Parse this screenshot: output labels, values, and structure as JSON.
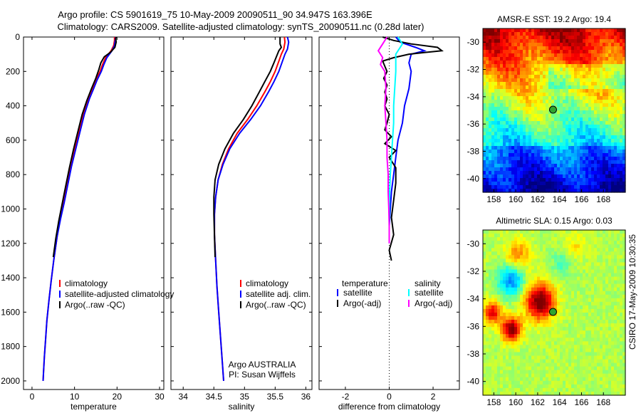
{
  "header": {
    "title_line1": "Argo profile: CS 5901619_75 10-May-2009 20090511_90 34.947S 163.396E",
    "title_line2": "Climatology: CARS2009. Satellite-adjusted climatology: synTS_20090511.nc (0.28d later)"
  },
  "side_label": "CSIRO 17-May-2009 10:30:35",
  "chart_data": [
    {
      "id": "temperature-panel",
      "type": "line",
      "xlabel": "temperature",
      "ylabel": "",
      "xlim": [
        -2,
        31
      ],
      "ylim": [
        2050,
        0
      ],
      "xticks": [
        0,
        10,
        20,
        30
      ],
      "yticks": [
        0,
        200,
        400,
        600,
        800,
        1000,
        1200,
        1400,
        1600,
        1800,
        2000
      ],
      "legend": {
        "placement": "bottom-right",
        "entries": [
          "climatology",
          "satellite-adjusted climatology",
          "Argo(..raw -QC)"
        ]
      },
      "series": [
        {
          "name": "climatology",
          "color": "#ff0000",
          "points": [
            [
              19.4,
              0
            ],
            [
              19.4,
              20
            ],
            [
              19.2,
              50
            ],
            [
              18.6,
              80
            ],
            [
              17.3,
              120
            ],
            [
              16.6,
              160
            ],
            [
              16,
              200
            ],
            [
              15,
              250
            ],
            [
              14.2,
              300
            ],
            [
              13.2,
              360
            ],
            [
              12,
              450
            ],
            [
              11,
              550
            ],
            [
              10,
              650
            ],
            [
              9,
              750
            ],
            [
              8.2,
              860
            ],
            [
              7.5,
              960
            ],
            [
              6.6,
              1060
            ],
            [
              5.9,
              1160
            ],
            [
              5.1,
              1300
            ],
            [
              4.5,
              1420
            ],
            [
              4,
              1530
            ],
            [
              3.5,
              1650
            ],
            [
              3.2,
              1760
            ],
            [
              2.9,
              1860
            ],
            [
              2.7,
              1950
            ],
            [
              2.6,
              2000
            ]
          ]
        },
        {
          "name": "satellite-adjusted climatology",
          "color": "#0000ff",
          "points": [
            [
              19.7,
              0
            ],
            [
              19.6,
              20
            ],
            [
              19.4,
              50
            ],
            [
              18.8,
              80
            ],
            [
              17.6,
              120
            ],
            [
              16.9,
              160
            ],
            [
              16.3,
              200
            ],
            [
              15.3,
              250
            ],
            [
              14.5,
              300
            ],
            [
              13.5,
              360
            ],
            [
              12.3,
              450
            ],
            [
              11.3,
              550
            ],
            [
              10.3,
              650
            ],
            [
              9.3,
              750
            ],
            [
              8.4,
              860
            ],
            [
              7.6,
              960
            ],
            [
              6.7,
              1060
            ],
            [
              5.9,
              1160
            ],
            [
              5.1,
              1300
            ],
            [
              4.5,
              1420
            ],
            [
              4,
              1530
            ],
            [
              3.5,
              1650
            ],
            [
              3.2,
              1760
            ],
            [
              2.9,
              1860
            ],
            [
              2.7,
              1950
            ],
            [
              2.6,
              2000
            ]
          ]
        },
        {
          "name": "Argo(..raw -QC)",
          "color": "#000000",
          "points": [
            [
              19.8,
              0
            ],
            [
              19.7,
              10
            ],
            [
              19.8,
              30
            ],
            [
              19.5,
              60
            ],
            [
              18.4,
              90
            ],
            [
              17,
              115
            ],
            [
              16.2,
              150
            ],
            [
              15.7,
              190
            ],
            [
              15,
              240
            ],
            [
              14,
              300
            ],
            [
              12.9,
              370
            ],
            [
              11.8,
              450
            ],
            [
              10.8,
              550
            ],
            [
              9.8,
              650
            ],
            [
              8.8,
              760
            ],
            [
              7.9,
              870
            ],
            [
              7.1,
              970
            ],
            [
              6.3,
              1070
            ],
            [
              5.6,
              1170
            ],
            [
              5,
              1280
            ]
          ]
        }
      ]
    },
    {
      "id": "salinity-panel",
      "type": "line",
      "xlabel": "salinity",
      "xlim": [
        33.8,
        36.1
      ],
      "ylim": [
        2050,
        0
      ],
      "xticks": [
        34,
        34.5,
        35,
        35.5,
        36
      ],
      "legend": {
        "placement": "bottom-right",
        "entries": [
          "climatology",
          "satellite adj. clim.",
          "Argo(..raw -QC)"
        ]
      },
      "annotation_lines": [
        "Argo AUSTRALIA",
        "PI: Susan Wijffels"
      ],
      "series": [
        {
          "name": "climatology",
          "color": "#ff0000",
          "points": [
            [
              35.65,
              0
            ],
            [
              35.66,
              30
            ],
            [
              35.64,
              70
            ],
            [
              35.6,
              100
            ],
            [
              35.55,
              150
            ],
            [
              35.5,
              200
            ],
            [
              35.42,
              260
            ],
            [
              35.33,
              320
            ],
            [
              35.2,
              400
            ],
            [
              35.05,
              480
            ],
            [
              34.88,
              560
            ],
            [
              34.74,
              650
            ],
            [
              34.64,
              740
            ],
            [
              34.57,
              830
            ],
            [
              34.53,
              930
            ],
            [
              34.51,
              1030
            ],
            [
              34.51,
              1150
            ],
            [
              34.53,
              1300
            ],
            [
              34.55,
              1450
            ],
            [
              34.58,
              1600
            ],
            [
              34.61,
              1750
            ],
            [
              34.64,
              1900
            ],
            [
              34.66,
              2000
            ]
          ]
        },
        {
          "name": "satellite adj. clim.",
          "color": "#0000ff",
          "points": [
            [
              35.7,
              0
            ],
            [
              35.72,
              30
            ],
            [
              35.7,
              70
            ],
            [
              35.66,
              100
            ],
            [
              35.61,
              150
            ],
            [
              35.56,
              200
            ],
            [
              35.48,
              260
            ],
            [
              35.39,
              320
            ],
            [
              35.26,
              400
            ],
            [
              35.1,
              480
            ],
            [
              34.92,
              560
            ],
            [
              34.76,
              650
            ],
            [
              34.65,
              740
            ],
            [
              34.57,
              830
            ],
            [
              34.53,
              930
            ],
            [
              34.51,
              1030
            ],
            [
              34.51,
              1150
            ],
            [
              34.53,
              1300
            ],
            [
              34.55,
              1450
            ],
            [
              34.58,
              1600
            ],
            [
              34.61,
              1750
            ],
            [
              34.64,
              1900
            ],
            [
              34.66,
              2000
            ]
          ]
        },
        {
          "name": "Argo(..raw -QC)",
          "color": "#000000",
          "points": [
            [
              35.58,
              0
            ],
            [
              35.58,
              40
            ],
            [
              35.6,
              60
            ],
            [
              35.56,
              80
            ],
            [
              35.48,
              150
            ],
            [
              35.42,
              200
            ],
            [
              35.33,
              260
            ],
            [
              35.24,
              320
            ],
            [
              35.12,
              400
            ],
            [
              34.98,
              480
            ],
            [
              34.82,
              560
            ],
            [
              34.68,
              650
            ],
            [
              34.58,
              740
            ],
            [
              34.52,
              830
            ],
            [
              34.5,
              930
            ],
            [
              34.5,
              1030
            ],
            [
              34.51,
              1150
            ],
            [
              34.52,
              1280
            ]
          ]
        }
      ]
    },
    {
      "id": "difference-panel",
      "type": "line",
      "xlabel": "difference from climatology",
      "xlim": [
        -3.2,
        3.2
      ],
      "ylim": [
        2050,
        0
      ],
      "xticks": [
        -2,
        0,
        2
      ],
      "legend": {
        "placement": "bottom-right",
        "column_titles": [
          "temperature",
          "salinity"
        ],
        "entries": [
          "satellite",
          "Argo(-adj)",
          "satellite",
          "Argo(-adj)"
        ]
      },
      "series": [
        {
          "name": "temperature satellite",
          "color": "#0000ff",
          "points": [
            [
              0.3,
              0
            ],
            [
              0.5,
              30
            ],
            [
              1.2,
              60
            ],
            [
              1.6,
              80
            ],
            [
              1.0,
              100
            ],
            [
              0.9,
              150
            ],
            [
              1.0,
              200
            ],
            [
              0.9,
              300
            ],
            [
              0.7,
              400
            ],
            [
              0.6,
              500
            ],
            [
              0.4,
              600
            ],
            [
              0.3,
              700
            ],
            [
              0.2,
              800
            ],
            [
              0.1,
              900
            ],
            [
              0.05,
              1000
            ],
            [
              0,
              1100
            ],
            [
              0,
              1200
            ]
          ]
        },
        {
          "name": "temperature Argo(-adj)",
          "color": "#000000",
          "points": [
            [
              -0.3,
              0
            ],
            [
              0.2,
              20
            ],
            [
              1,
              40
            ],
            [
              2.2,
              60
            ],
            [
              2.4,
              80
            ],
            [
              1.6,
              90
            ],
            [
              0.9,
              100
            ],
            [
              0.2,
              120
            ],
            [
              -0.3,
              140
            ],
            [
              -0.2,
              170
            ],
            [
              -0.1,
              200
            ],
            [
              -0.25,
              240
            ],
            [
              -0.1,
              280
            ],
            [
              -0.2,
              320
            ],
            [
              -0.1,
              360
            ],
            [
              -0.2,
              400
            ],
            [
              0,
              450
            ],
            [
              -0.1,
              500
            ],
            [
              -0.2,
              540
            ],
            [
              0.1,
              580
            ],
            [
              -0.2,
              620
            ],
            [
              0.3,
              660
            ],
            [
              0,
              700
            ],
            [
              0.3,
              760
            ],
            [
              0.3,
              850
            ],
            [
              0.2,
              950
            ],
            [
              0.1,
              1050
            ],
            [
              0.2,
              1150
            ],
            [
              0,
              1240
            ],
            [
              0.1,
              1300
            ]
          ]
        },
        {
          "name": "salinity satellite",
          "color": "#00ffff",
          "points": [
            [
              0.4,
              0
            ],
            [
              0.5,
              20
            ],
            [
              0.6,
              40
            ],
            [
              0.5,
              60
            ],
            [
              0.3,
              100
            ],
            [
              0.3,
              200
            ],
            [
              0.25,
              300
            ],
            [
              0.2,
              400
            ],
            [
              0.2,
              500
            ],
            [
              0.15,
              600
            ],
            [
              0.1,
              700
            ],
            [
              0.05,
              800
            ],
            [
              0.02,
              900
            ],
            [
              0,
              1000
            ],
            [
              0,
              1100
            ],
            [
              0,
              1200
            ]
          ]
        },
        {
          "name": "salinity Argo(-adj)",
          "color": "#ff00ff",
          "points": [
            [
              -0.1,
              0
            ],
            [
              -0.3,
              40
            ],
            [
              -0.5,
              80
            ],
            [
              -0.3,
              120
            ],
            [
              -0.4,
              160
            ],
            [
              -0.2,
              200
            ],
            [
              -0.15,
              300
            ],
            [
              -0.2,
              400
            ],
            [
              -0.15,
              500
            ],
            [
              -0.1,
              600
            ],
            [
              -0.1,
              700
            ],
            [
              -0.05,
              800
            ],
            [
              -0.05,
              900
            ],
            [
              -0.02,
              1000
            ],
            [
              0,
              1100
            ],
            [
              0,
              1200
            ]
          ]
        }
      ]
    },
    {
      "id": "sst-map",
      "type": "heatmap",
      "title": "AMSR-E SST: 19.2 Argo: 19.4",
      "xlim": [
        157,
        170
      ],
      "ylim": [
        -41,
        -29
      ],
      "xticks": [
        158,
        160,
        162,
        164,
        166,
        168
      ],
      "yticks": [
        -30,
        -32,
        -34,
        -36,
        -38,
        -40
      ],
      "marker": {
        "lon": 163.4,
        "lat": -34.95
      },
      "colormap": [
        "#00007f",
        "#0000ff",
        "#007fff",
        "#00ffff",
        "#7fff7f",
        "#ffff00",
        "#ff7f00",
        "#ff0000",
        "#7f0000"
      ]
    },
    {
      "id": "sla-map",
      "type": "heatmap",
      "title": "Altimetric SLA: 0.15 Argo: 0.03",
      "xlim": [
        157,
        170
      ],
      "ylim": [
        -41,
        -29
      ],
      "xticks": [
        158,
        160,
        162,
        164,
        166,
        168
      ],
      "yticks": [
        -30,
        -32,
        -34,
        -36,
        -38,
        -40
      ],
      "marker": {
        "lon": 163.4,
        "lat": -34.95
      },
      "colormap": [
        "#00007f",
        "#0000ff",
        "#007fff",
        "#00ffff",
        "#7fff7f",
        "#ffff00",
        "#ff7f00",
        "#ff0000",
        "#7f0000"
      ]
    }
  ]
}
